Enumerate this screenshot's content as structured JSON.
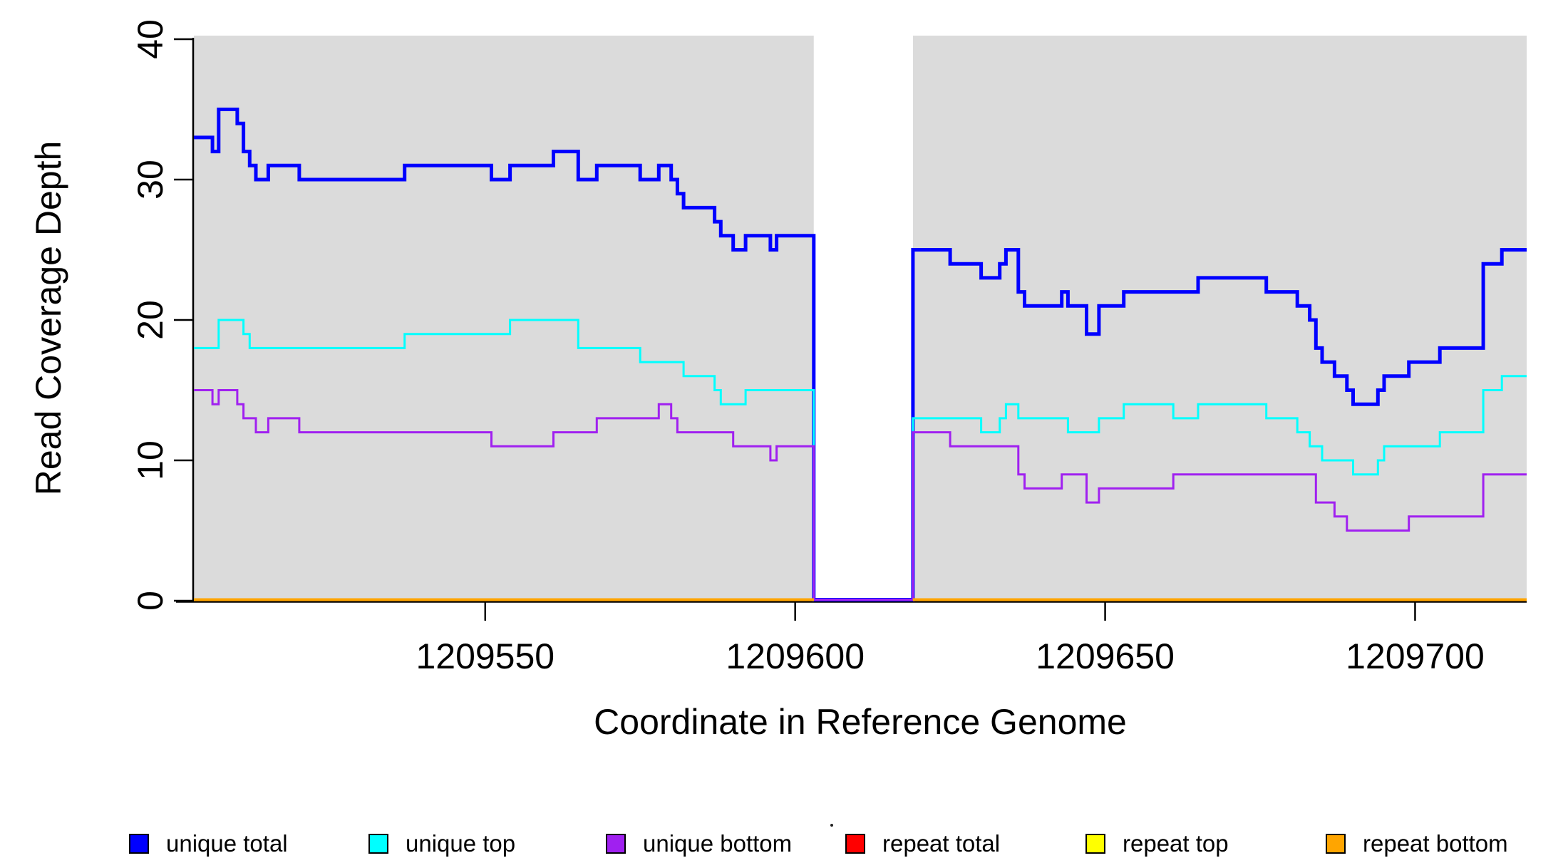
{
  "page": {
    "background_color": "#FFFFFF",
    "plot_background_color": "#DBDBDB",
    "axis_color": "#000000"
  },
  "chart_data": {
    "type": "line",
    "subtype": "step-coverage",
    "title": "",
    "xlabel": "Coordinate in Reference Genome",
    "ylabel": "Read Coverage Depth",
    "xlim": [
      1209503,
      1209718
    ],
    "ylim": [
      0,
      40
    ],
    "x_ticks": [
      1209550,
      1209600,
      1209650,
      1209700
    ],
    "y_ticks": [
      0,
      10,
      20,
      30,
      40
    ],
    "grid": false,
    "legend_position": "bottom",
    "shaded_regions": [
      [
        1209503,
        1209603
      ],
      [
        1209619,
        1209718
      ]
    ],
    "gap_region": [
      1209603,
      1209619
    ],
    "series": [
      {
        "name": "unique_total",
        "label": "unique total",
        "color": "#0000FF",
        "line_width": 5,
        "segments": [
          [
            1209503,
            1209506,
            33
          ],
          [
            1209506,
            1209507,
            32
          ],
          [
            1209507,
            1209510,
            35
          ],
          [
            1209510,
            1209511,
            34
          ],
          [
            1209511,
            1209512,
            32
          ],
          [
            1209512,
            1209513,
            31
          ],
          [
            1209513,
            1209515,
            30
          ],
          [
            1209515,
            1209520,
            31
          ],
          [
            1209520,
            1209537,
            30
          ],
          [
            1209537,
            1209551,
            31
          ],
          [
            1209551,
            1209554,
            30
          ],
          [
            1209554,
            1209561,
            31
          ],
          [
            1209561,
            1209565,
            32
          ],
          [
            1209565,
            1209568,
            30
          ],
          [
            1209568,
            1209575,
            31
          ],
          [
            1209575,
            1209578,
            30
          ],
          [
            1209578,
            1209580,
            31
          ],
          [
            1209580,
            1209581,
            30
          ],
          [
            1209581,
            1209582,
            29
          ],
          [
            1209582,
            1209587,
            28
          ],
          [
            1209587,
            1209588,
            27
          ],
          [
            1209588,
            1209590,
            26
          ],
          [
            1209590,
            1209592,
            25
          ],
          [
            1209592,
            1209596,
            26
          ],
          [
            1209596,
            1209597,
            25
          ],
          [
            1209597,
            1209603,
            26
          ],
          [
            1209603,
            1209619,
            0
          ],
          [
            1209619,
            1209625,
            25
          ],
          [
            1209625,
            1209630,
            24
          ],
          [
            1209630,
            1209633,
            23
          ],
          [
            1209633,
            1209634,
            24
          ],
          [
            1209634,
            1209636,
            25
          ],
          [
            1209636,
            1209637,
            22
          ],
          [
            1209637,
            1209643,
            21
          ],
          [
            1209643,
            1209644,
            22
          ],
          [
            1209644,
            1209647,
            21
          ],
          [
            1209647,
            1209649,
            19
          ],
          [
            1209649,
            1209653,
            21
          ],
          [
            1209653,
            1209665,
            22
          ],
          [
            1209665,
            1209676,
            23
          ],
          [
            1209676,
            1209681,
            22
          ],
          [
            1209681,
            1209683,
            21
          ],
          [
            1209683,
            1209684,
            20
          ],
          [
            1209684,
            1209685,
            18
          ],
          [
            1209685,
            1209687,
            17
          ],
          [
            1209687,
            1209689,
            16
          ],
          [
            1209689,
            1209690,
            15
          ],
          [
            1209690,
            1209694,
            14
          ],
          [
            1209694,
            1209695,
            15
          ],
          [
            1209695,
            1209699,
            16
          ],
          [
            1209699,
            1209704,
            17
          ],
          [
            1209704,
            1209711,
            18
          ],
          [
            1209711,
            1209714,
            24
          ],
          [
            1209714,
            1209718,
            25
          ]
        ]
      },
      {
        "name": "unique_top",
        "label": "unique top",
        "color": "#00FFFF",
        "line_width": 3,
        "segments": [
          [
            1209503,
            1209507,
            18
          ],
          [
            1209507,
            1209511,
            20
          ],
          [
            1209511,
            1209512,
            19
          ],
          [
            1209512,
            1209537,
            18
          ],
          [
            1209537,
            1209554,
            19
          ],
          [
            1209554,
            1209565,
            20
          ],
          [
            1209565,
            1209575,
            18
          ],
          [
            1209575,
            1209582,
            17
          ],
          [
            1209582,
            1209587,
            16
          ],
          [
            1209587,
            1209588,
            15
          ],
          [
            1209588,
            1209592,
            14
          ],
          [
            1209592,
            1209603,
            15
          ],
          [
            1209603,
            1209619,
            0
          ],
          [
            1209619,
            1209630,
            13
          ],
          [
            1209630,
            1209633,
            12
          ],
          [
            1209633,
            1209634,
            13
          ],
          [
            1209634,
            1209636,
            14
          ],
          [
            1209636,
            1209644,
            13
          ],
          [
            1209644,
            1209649,
            12
          ],
          [
            1209649,
            1209653,
            13
          ],
          [
            1209653,
            1209661,
            14
          ],
          [
            1209661,
            1209665,
            13
          ],
          [
            1209665,
            1209676,
            14
          ],
          [
            1209676,
            1209681,
            13
          ],
          [
            1209681,
            1209683,
            12
          ],
          [
            1209683,
            1209685,
            11
          ],
          [
            1209685,
            1209690,
            10
          ],
          [
            1209690,
            1209694,
            9
          ],
          [
            1209694,
            1209695,
            10
          ],
          [
            1209695,
            1209704,
            11
          ],
          [
            1209704,
            1209711,
            12
          ],
          [
            1209711,
            1209714,
            15
          ],
          [
            1209714,
            1209718,
            16
          ]
        ]
      },
      {
        "name": "unique_bottom",
        "label": "unique bottom",
        "color": "#A020F0",
        "line_width": 3,
        "segments": [
          [
            1209503,
            1209506,
            15
          ],
          [
            1209506,
            1209507,
            14
          ],
          [
            1209507,
            1209510,
            15
          ],
          [
            1209510,
            1209511,
            14
          ],
          [
            1209511,
            1209513,
            13
          ],
          [
            1209513,
            1209515,
            12
          ],
          [
            1209515,
            1209520,
            13
          ],
          [
            1209520,
            1209551,
            12
          ],
          [
            1209551,
            1209561,
            11
          ],
          [
            1209561,
            1209568,
            12
          ],
          [
            1209568,
            1209578,
            13
          ],
          [
            1209578,
            1209580,
            14
          ],
          [
            1209580,
            1209581,
            13
          ],
          [
            1209581,
            1209590,
            12
          ],
          [
            1209590,
            1209596,
            11
          ],
          [
            1209596,
            1209597,
            10
          ],
          [
            1209597,
            1209603,
            11
          ],
          [
            1209603,
            1209619,
            0
          ],
          [
            1209619,
            1209625,
            12
          ],
          [
            1209625,
            1209636,
            11
          ],
          [
            1209636,
            1209637,
            9
          ],
          [
            1209637,
            1209643,
            8
          ],
          [
            1209643,
            1209647,
            9
          ],
          [
            1209647,
            1209649,
            7
          ],
          [
            1209649,
            1209661,
            8
          ],
          [
            1209661,
            1209684,
            9
          ],
          [
            1209684,
            1209687,
            7
          ],
          [
            1209687,
            1209689,
            6
          ],
          [
            1209689,
            1209699,
            5
          ],
          [
            1209699,
            1209711,
            6
          ],
          [
            1209711,
            1209718,
            9
          ]
        ]
      },
      {
        "name": "repeat_total",
        "label": "repeat total",
        "color": "#FF0000",
        "line_width": 4,
        "segments": [
          [
            1209503,
            1209603,
            0
          ],
          [
            1209619,
            1209718,
            0
          ]
        ]
      },
      {
        "name": "repeat_top",
        "label": "repeat top",
        "color": "#FFFF00",
        "line_width": 4,
        "segments": [
          [
            1209503,
            1209603,
            0
          ],
          [
            1209619,
            1209718,
            0
          ]
        ]
      },
      {
        "name": "repeat_bottom",
        "label": "repeat bottom",
        "color": "#FFA500",
        "line_width": 4,
        "segments": [
          [
            1209503,
            1209603,
            0
          ],
          [
            1209619,
            1209718,
            0
          ]
        ]
      }
    ]
  },
  "legend": {
    "item_lefts": [
      181,
      517,
      850,
      1186,
      1523,
      1860
    ]
  }
}
